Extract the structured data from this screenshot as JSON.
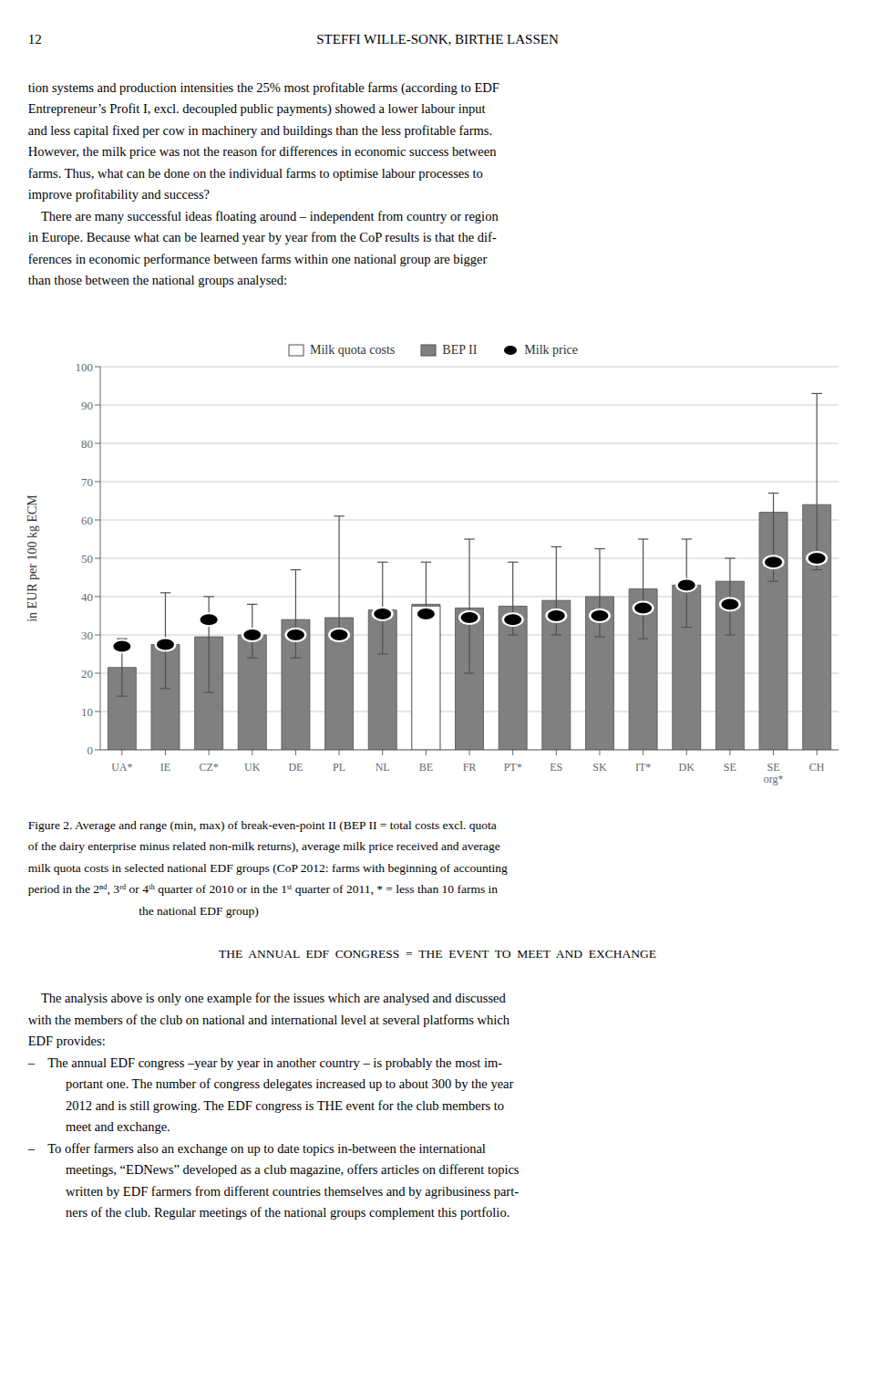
{
  "page_number": "12",
  "header": "STEFFI WILLE-SONK, BIRTHE LASSEN",
  "intro": [
    "tion systems and production intensities the 25% most profitable farms (according to EDF",
    "Entrepreneur’s Profit I, excl. decoupled public payments) showed a lower labour input",
    "and less capital fixed per cow in machinery and buildings than the less profitable farms.",
    "However, the milk price was not the reason for differences in economic success between",
    "farms. Thus, what can be done on the individual farms to optimise labour processes to",
    "improve profitability and success?",
    "    There are many successful ideas floating around – independent from country or region",
    "in Europe. Because what can be learned year by year from the CoP results is that the dif-",
    "ferences in economic performance between farms within one national group are bigger",
    "than those between the national groups analysed:"
  ],
  "caption": [
    "Figure 2. Average and range (min, max) of break-even-point II (BEP II = total costs excl. quota",
    "of the dairy enterprise minus related non-milk returns), average milk price received and average",
    "milk quota costs in selected national EDF groups (CoP 2012: farms with beginning of accounting",
    "period in the 2ⁿᵈ, 3ʳᵈ or 4ᵗʰ quarter of 2010 or in the 1ˢᵗ quarter of 2011, * = less than 10 farms in",
    "                                    the national EDF group)"
  ],
  "heading": "THE  ANNUAL  EDF  CONGRESS  =  THE  EVENT  TO  MEET  AND  EXCHANGE",
  "body": [
    "    The analysis above is only one example for the issues which are analysed and discussed",
    "with the members of the club on national and international level at several platforms which",
    "EDF provides:",
    "–    The annual EDF congress –year by year in another country – is probably the most im-",
    "portant one. The number of congress delegates increased up to about 300 by the year",
    "2012 and is still growing. The EDF congress is THE event for the club members to",
    "meet and exchange.",
    "–    To offer farmers also an exchange on up to date topics in-between the international",
    "meetings, “EDNews” developed as a club magazine, offers articles on different topics",
    "written by EDF farmers from different countries themselves and by agribusiness part-",
    "ners of the club. Regular meetings of the national groups complement this portfolio."
  ],
  "chart_data": {
    "type": "bar",
    "categories": [
      "UA*",
      "IE",
      "CZ*",
      "UK",
      "DE",
      "PL",
      "NL",
      "BE",
      "FR",
      "PT*",
      "ES",
      "SK",
      "IT*",
      "DK",
      "SE",
      "SE\norg*",
      "CH"
    ],
    "series": [
      {
        "name": "Milk quota costs",
        "type": "bar",
        "color": "#ffffff",
        "values": [
          null,
          null,
          null,
          null,
          null,
          null,
          null,
          37.5,
          null,
          null,
          null,
          null,
          null,
          null,
          null,
          null,
          null
        ]
      },
      {
        "name": "BEP II",
        "type": "bar",
        "color": "#808080",
        "values": [
          21.5,
          27.5,
          29.5,
          30.0,
          34.0,
          34.5,
          36.5,
          38.0,
          37.0,
          37.5,
          39.0,
          40.0,
          42.0,
          43.0,
          44.0,
          62.0,
          64.0
        ],
        "min": [
          14.0,
          16.0,
          15.0,
          24.0,
          24.0,
          29.0,
          25.0,
          30.0,
          20.0,
          30.0,
          30.0,
          29.5,
          29.0,
          32.0,
          30.0,
          44.0,
          47.0
        ],
        "max": [
          29.0,
          41.0,
          40.0,
          38.0,
          47.0,
          61.0,
          49.0,
          49.0,
          55.0,
          49.0,
          53.0,
          52.5,
          55.0,
          55.0,
          50.0,
          67.0,
          93.0
        ]
      },
      {
        "name": "Milk price",
        "type": "scatter",
        "marker": "ellipse",
        "color": "#000000",
        "values": [
          27.0,
          27.5,
          34.0,
          30.0,
          30.0,
          30.0,
          35.5,
          35.5,
          34.5,
          34.0,
          35.0,
          35.0,
          37.0,
          43.0,
          38.0,
          49.0,
          50.0
        ]
      }
    ],
    "ylabel": "in EUR per 100 kg ECM",
    "ylim": [
      0,
      100
    ],
    "yticks": [
      0,
      10,
      20,
      30,
      40,
      50,
      60,
      70,
      80,
      90,
      100
    ],
    "grid": true,
    "legend": "top"
  }
}
